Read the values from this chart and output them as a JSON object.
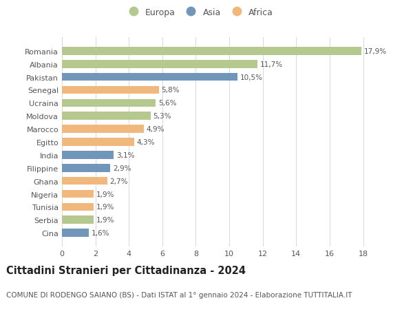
{
  "categories": [
    "Cina",
    "Serbia",
    "Tunisia",
    "Nigeria",
    "Ghana",
    "Filippine",
    "India",
    "Egitto",
    "Marocco",
    "Moldova",
    "Ucraina",
    "Senegal",
    "Pakistan",
    "Albania",
    "Romania"
  ],
  "values": [
    1.6,
    1.9,
    1.9,
    1.9,
    2.7,
    2.9,
    3.1,
    4.3,
    4.9,
    5.3,
    5.6,
    5.8,
    10.5,
    11.7,
    17.9
  ],
  "labels": [
    "1,6%",
    "1,9%",
    "1,9%",
    "1,9%",
    "2,7%",
    "2,9%",
    "3,1%",
    "4,3%",
    "4,9%",
    "5,3%",
    "5,6%",
    "5,8%",
    "10,5%",
    "11,7%",
    "17,9%"
  ],
  "continents": [
    "Asia",
    "Europa",
    "Africa",
    "Africa",
    "Africa",
    "Asia",
    "Asia",
    "Africa",
    "Africa",
    "Europa",
    "Europa",
    "Africa",
    "Asia",
    "Europa",
    "Europa"
  ],
  "colors": {
    "Europa": "#b5c98e",
    "Asia": "#7295ba",
    "Africa": "#f0b87c"
  },
  "xlim": [
    0,
    19.5
  ],
  "xticks": [
    0,
    2,
    4,
    6,
    8,
    10,
    12,
    14,
    16,
    18
  ],
  "title": "Cittadini Stranieri per Cittadinanza - 2024",
  "subtitle": "COMUNE DI RODENGO SAIANO (BS) - Dati ISTAT al 1° gennaio 2024 - Elaborazione TUTTITALIA.IT",
  "title_fontsize": 10.5,
  "subtitle_fontsize": 7.5,
  "label_fontsize": 7.5,
  "tick_fontsize": 8,
  "bar_height": 0.62,
  "background_color": "#ffffff",
  "grid_color": "#d8d8d8",
  "text_color": "#555555",
  "legend_order": [
    "Europa",
    "Asia",
    "Africa"
  ]
}
